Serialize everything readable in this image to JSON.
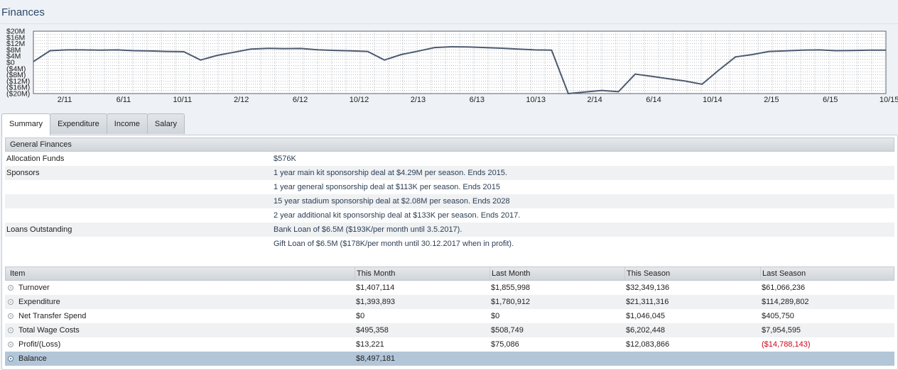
{
  "page": {
    "title": "Finances"
  },
  "chart_data": {
    "type": "line",
    "title": "",
    "y_ticks": [
      "$20M",
      "$16M",
      "$12M",
      "$8M",
      "$4M",
      "$0",
      "($4M)",
      "($8M)",
      "($12M)",
      "($16M)",
      "($20M)"
    ],
    "x_ticks": [
      "2/11",
      "6/11",
      "10/11",
      "2/12",
      "6/12",
      "10/12",
      "2/13",
      "6/13",
      "10/13",
      "2/14",
      "6/14",
      "10/14",
      "2/15",
      "6/15",
      "10/15"
    ],
    "ylim": [
      -20,
      20
    ],
    "grid": true,
    "series": [
      {
        "values": [
          0.5,
          7.5,
          8,
          8,
          7.8,
          8,
          7.5,
          7.3,
          7,
          6.8,
          1.5,
          4.5,
          6.5,
          8.5,
          9,
          8.8,
          8.9,
          8.1,
          7.7,
          7.4,
          7,
          1.5,
          5,
          7.2,
          9.5,
          10,
          9.9,
          9.5,
          9.1,
          8.5,
          8,
          7.8,
          -23,
          -19,
          -18,
          -18.8,
          -7.5,
          -9,
          -10.5,
          -12,
          -14,
          -5,
          3.5,
          5,
          7,
          7.4,
          7.8,
          8,
          7.5,
          7.6,
          7.8,
          7.8
        ],
        "color": "#4d5a70"
      }
    ]
  },
  "tabs": [
    "Summary",
    "Expenditure",
    "Income",
    "Salary"
  ],
  "general": {
    "heading": "General Finances",
    "rows": [
      {
        "label": "Allocation Funds",
        "value": "$576K"
      },
      {
        "label": "Sponsors",
        "value": "1 year main kit sponsorship deal at $4.29M per season. Ends 2015."
      },
      {
        "label": "",
        "value": "1 year general sponsorship deal at $113K per season. Ends 2015"
      },
      {
        "label": "",
        "value": "15 year stadium sponsorship deal at $2.08M per season. Ends 2028"
      },
      {
        "label": "",
        "value": "2 year additional kit sponsorship deal at $133K per season. Ends 2017."
      },
      {
        "label": "Loans Outstanding",
        "value": "Bank Loan of $6.5M ($193K/per month until 3.5.2017)."
      },
      {
        "label": "",
        "value": "Gift Loan of $6.5M ($178K/per month until 30.12.2017 when in profit)."
      }
    ]
  },
  "table": {
    "headers": [
      "Item",
      "This Month",
      "Last Month",
      "This Season",
      "Last Season"
    ],
    "rows": [
      {
        "item": "Turnover",
        "this_month": "$1,407,114",
        "last_month": "$1,855,998",
        "this_season": "$32,349,136",
        "last_season": "$61,066,236"
      },
      {
        "item": "Expenditure",
        "this_month": "$1,393,893",
        "last_month": "$1,780,912",
        "this_season": "$21,311,316",
        "last_season": "$114,289,802"
      },
      {
        "item": "Net Transfer Spend",
        "this_month": "$0",
        "last_month": "$0",
        "this_season": "$1,046,045",
        "last_season": "$405,750"
      },
      {
        "item": "Total Wage Costs",
        "this_month": "$495,358",
        "last_month": "$508,749",
        "this_season": "$6,202,448",
        "last_season": "$7,954,595"
      },
      {
        "item": "Profit/(Loss)",
        "this_month": "$13,221",
        "last_month": "$75,086",
        "this_season": "$12,083,866",
        "last_season": "($14,788,143)"
      },
      {
        "item": "Balance",
        "this_month": "$8,497,181",
        "last_month": "",
        "this_season": "",
        "last_season": ""
      }
    ]
  },
  "colors": {
    "negative": "#d0021b",
    "selected_row": "#b3c6d8",
    "chart_line": "#4d5a70"
  }
}
